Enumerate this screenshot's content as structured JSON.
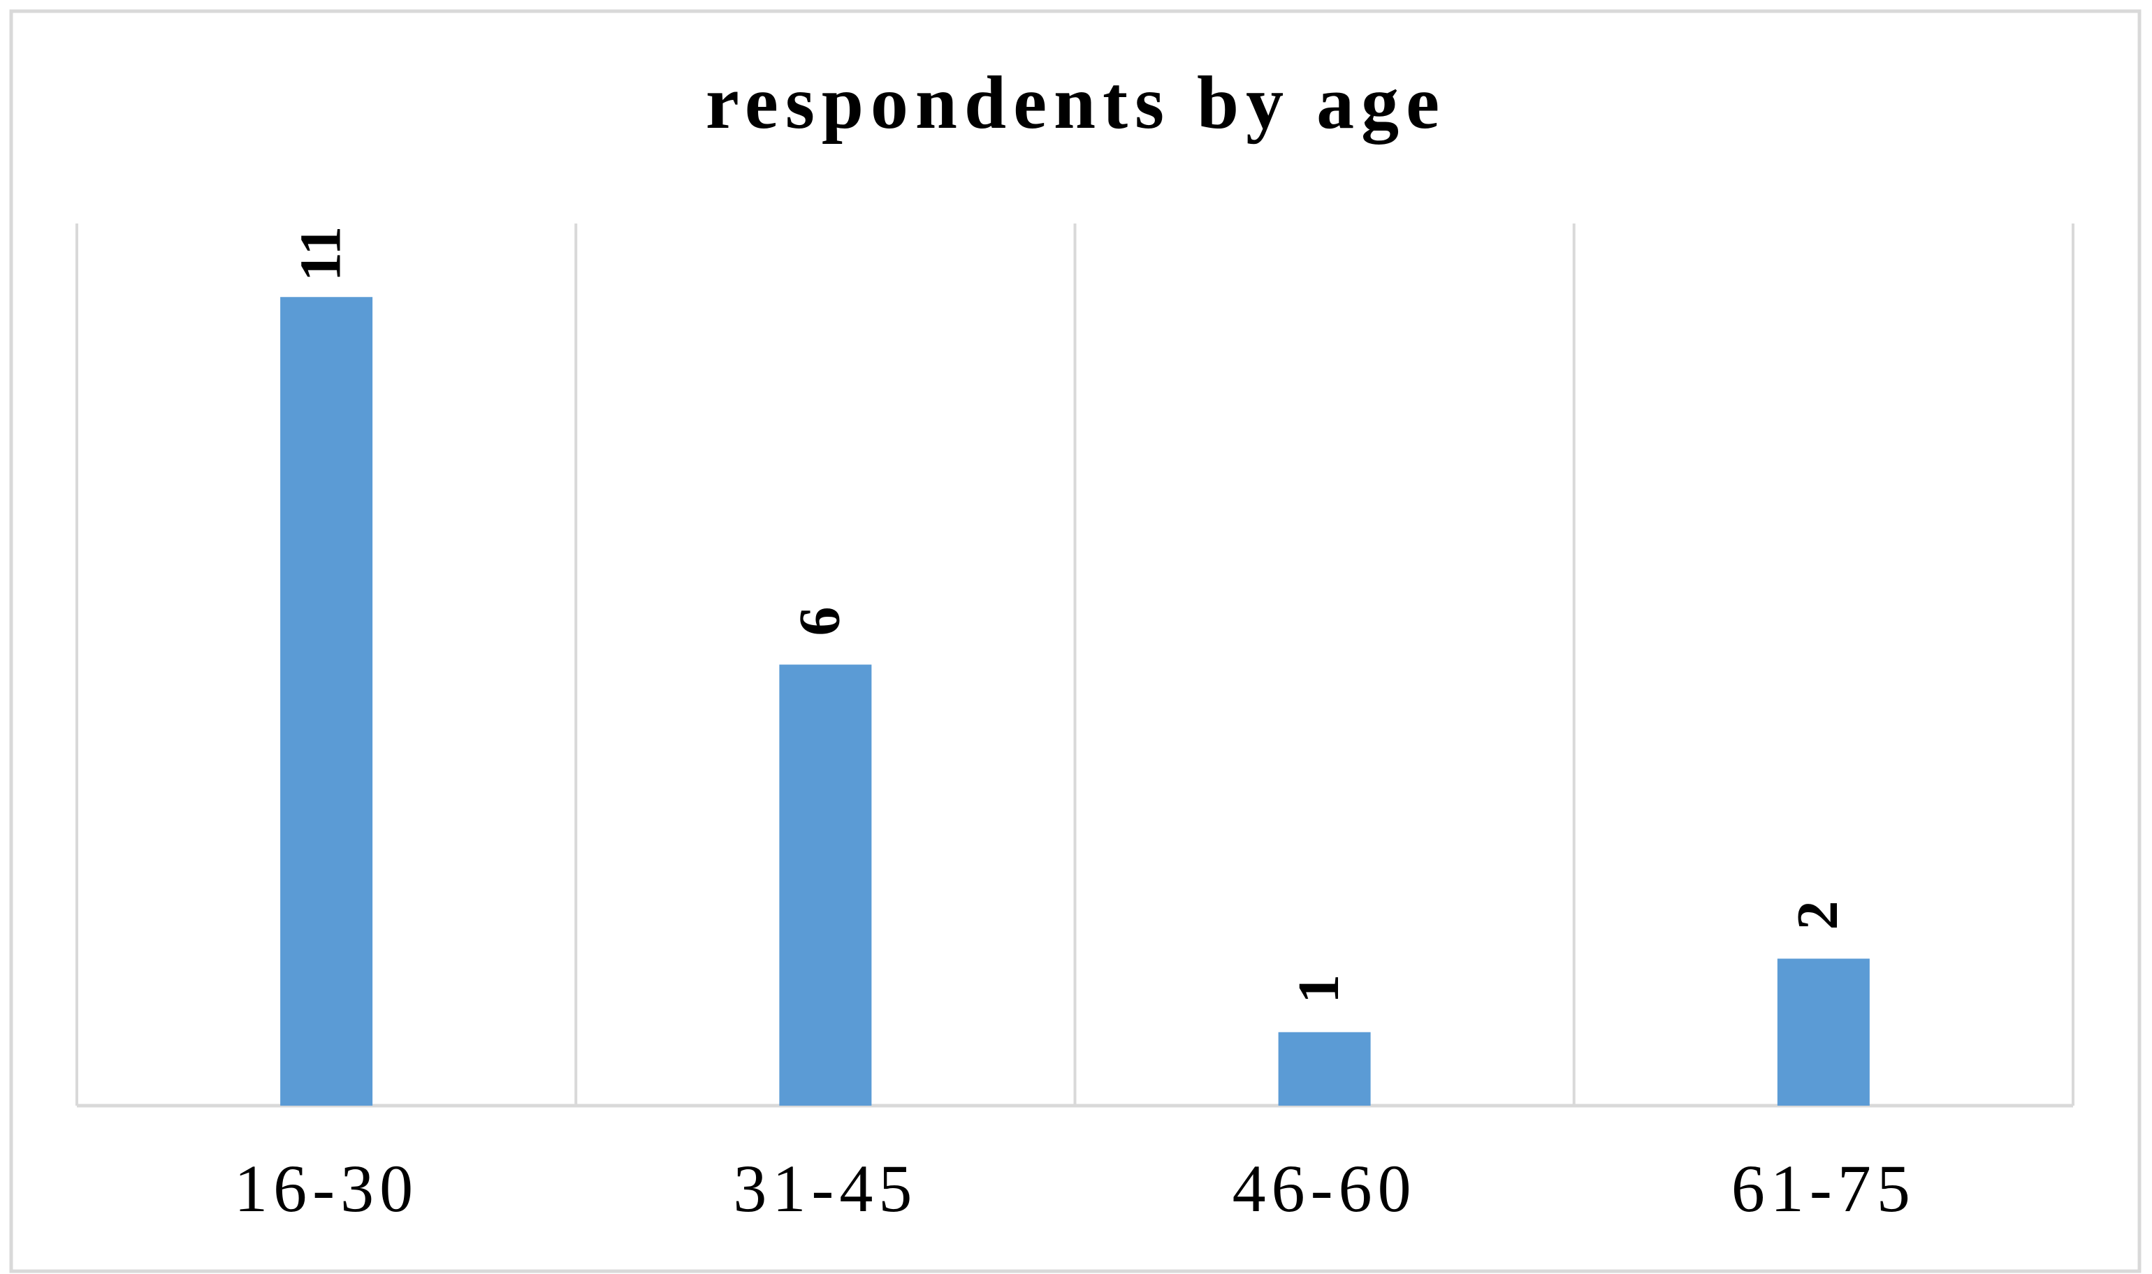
{
  "chart_data": {
    "type": "bar",
    "title": "respondents by age",
    "categories": [
      "16-30",
      "31-45",
      "46-60",
      "61-75"
    ],
    "values": [
      11,
      6,
      1,
      2
    ],
    "color": "#5b9bd5",
    "ylim": [
      0,
      12
    ],
    "grid": true
  }
}
